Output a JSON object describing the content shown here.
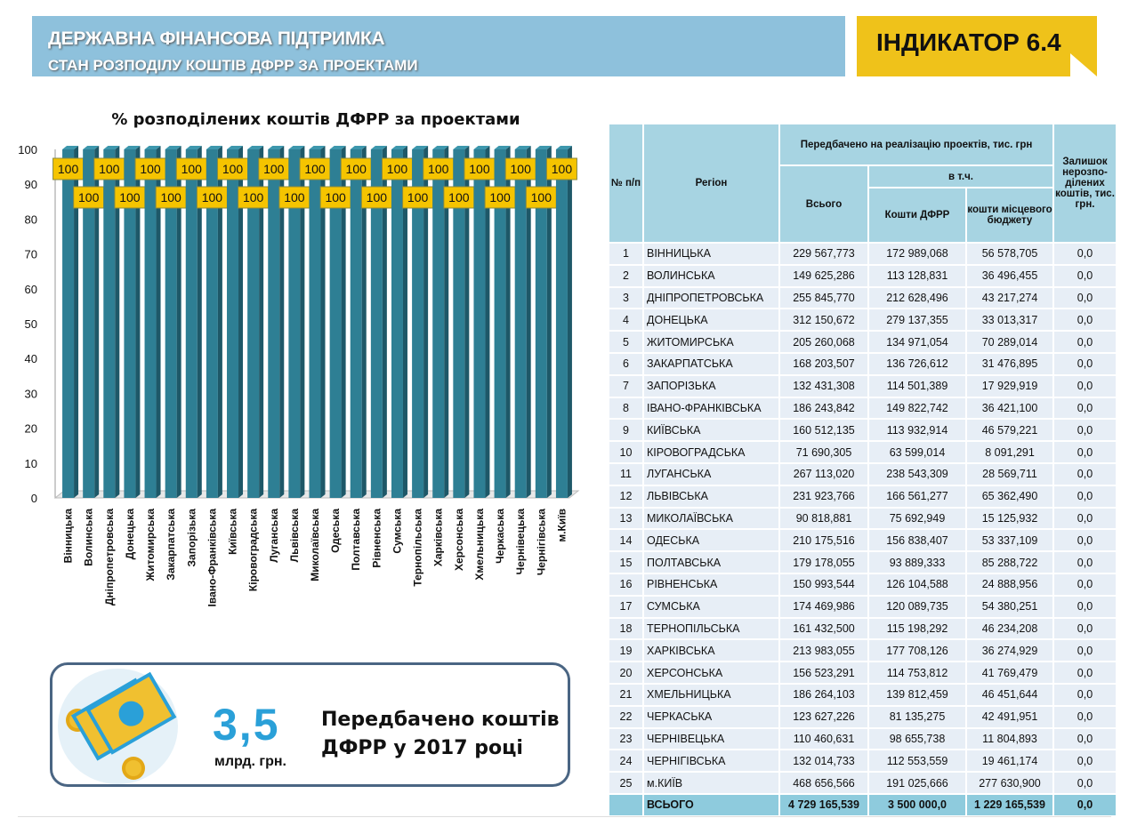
{
  "header": {
    "title": "ДЕРЖАВНА ФІНАНСОВА  ПІДТРИМКА",
    "subtitle": "СТАН РОЗПОДІЛУ КОШТІВ ДФРР ЗА ПРОЕКТАМИ",
    "indicator": "ІНДИКАТОР 6.4"
  },
  "colors": {
    "banner": "#8ec1dc",
    "indicator": "#efc21a",
    "bar": "#2e7f94",
    "label_bg": "#f5c400",
    "accent": "#2aa0d8"
  },
  "chart_data": {
    "type": "bar",
    "title": "% розподілених коштів ДФРР за проектами",
    "ylim": [
      0,
      100
    ],
    "yticks": [
      0,
      10,
      20,
      30,
      40,
      50,
      60,
      70,
      80,
      90,
      100
    ],
    "categories": [
      "Вінницька",
      "Волинська",
      "Дніпропетровська",
      "Донецька",
      "Житомирська",
      "Закарпатська",
      "Запорізька",
      "Івано-Франківська",
      "Київська",
      "Кіровоградська",
      "Луганська",
      "Львівська",
      "Миколаївська",
      "Одеська",
      "Полтавська",
      "Рівненська",
      "Сумська",
      "Тернопільська",
      "Харківська",
      "Херсонська",
      "Хмельницька",
      "Черкаська",
      "Чернівецька",
      "Чернігівська",
      "м.Київ"
    ],
    "values": [
      100,
      100,
      100,
      100,
      100,
      100,
      100,
      100,
      100,
      100,
      100,
      100,
      100,
      100,
      100,
      100,
      100,
      100,
      100,
      100,
      100,
      100,
      100,
      100,
      100
    ]
  },
  "card": {
    "amount": "3,5",
    "unit": "млрд. грн.",
    "line1": "Передбачено коштів",
    "line2": "ДФРР у 2017 році",
    "icon": "money-icon"
  },
  "table": {
    "headers": {
      "num": "№ п/п",
      "region": "Регіон",
      "planned": "Передбачено на реалізацію проектів, тис. грн",
      "incl": "в т.ч.",
      "total": "Всього",
      "dfrr": "Кошти ДФРР",
      "local": "кошти місцевого бюджету",
      "remain": "Залишок нерозпо-ділених коштів, тис. грн."
    },
    "rows": [
      [
        "1",
        "ВІННИЦЬКА",
        "229 567,773",
        "172 989,068",
        "56 578,705",
        "0,0"
      ],
      [
        "2",
        "ВОЛИНСЬКА",
        "149 625,286",
        "113 128,831",
        "36 496,455",
        "0,0"
      ],
      [
        "3",
        "ДНІПРОПЕТРОВСЬКА",
        "255 845,770",
        "212 628,496",
        "43 217,274",
        "0,0"
      ],
      [
        "4",
        "ДОНЕЦЬКА",
        "312 150,672",
        "279 137,355",
        "33 013,317",
        "0,0"
      ],
      [
        "5",
        "ЖИТОМИРСЬКА",
        "205 260,068",
        "134 971,054",
        "70 289,014",
        "0,0"
      ],
      [
        "6",
        "ЗАКАРПАТСЬКА",
        "168 203,507",
        "136 726,612",
        "31 476,895",
        "0,0"
      ],
      [
        "7",
        "ЗАПОРІЗЬКА",
        "132 431,308",
        "114 501,389",
        "17 929,919",
        "0,0"
      ],
      [
        "8",
        "ІВАНО-ФРАНКІВСЬКА",
        "186 243,842",
        "149 822,742",
        "36 421,100",
        "0,0"
      ],
      [
        "9",
        "КИЇВСЬКА",
        "160 512,135",
        "113 932,914",
        "46 579,221",
        "0,0"
      ],
      [
        "10",
        "КІРОВОГРАДСЬКА",
        "71 690,305",
        "63 599,014",
        "8 091,291",
        "0,0"
      ],
      [
        "11",
        "ЛУГАНСЬКА",
        "267 113,020",
        "238 543,309",
        "28 569,711",
        "0,0"
      ],
      [
        "12",
        "ЛЬВІВСЬКА",
        "231 923,766",
        "166 561,277",
        "65 362,490",
        "0,0"
      ],
      [
        "13",
        "МИКОЛАЇВСЬКА",
        "90 818,881",
        "75 692,949",
        "15 125,932",
        "0,0"
      ],
      [
        "14",
        "ОДЕСЬКА",
        "210 175,516",
        "156 838,407",
        "53 337,109",
        "0,0"
      ],
      [
        "15",
        "ПОЛТАВСЬКА",
        "179 178,055",
        "93 889,333",
        "85 288,722",
        "0,0"
      ],
      [
        "16",
        "РІВНЕНСЬКА",
        "150 993,544",
        "126 104,588",
        "24 888,956",
        "0,0"
      ],
      [
        "17",
        "СУМСЬКА",
        "174 469,986",
        "120 089,735",
        "54 380,251",
        "0,0"
      ],
      [
        "18",
        "ТЕРНОПІЛЬСЬКА",
        "161 432,500",
        "115 198,292",
        "46 234,208",
        "0,0"
      ],
      [
        "19",
        "ХАРКІВСЬКА",
        "213 983,055",
        "177 708,126",
        "36 274,929",
        "0,0"
      ],
      [
        "20",
        "ХЕРСОНСЬКА",
        "156 523,291",
        "114 753,812",
        "41 769,479",
        "0,0"
      ],
      [
        "21",
        "ХМЕЛЬНИЦЬКА",
        "186 264,103",
        "139 812,459",
        "46 451,644",
        "0,0"
      ],
      [
        "22",
        "ЧЕРКАСЬКА",
        "123 627,226",
        "81 135,275",
        "42 491,951",
        "0,0"
      ],
      [
        "23",
        "ЧЕРНІВЕЦЬКА",
        "110 460,631",
        "98 655,738",
        "11 804,893",
        "0,0"
      ],
      [
        "24",
        "ЧЕРНІГІВСЬКА",
        "132 014,733",
        "112 553,559",
        "19 461,174",
        "0,0"
      ],
      [
        "25",
        "м.КИЇВ",
        "468 656,566",
        "191 025,666",
        "277 630,900",
        "0,0"
      ]
    ],
    "total": [
      "",
      "ВСЬОГО",
      "4 729 165,539",
      "3 500 000,0",
      "1 229 165,539",
      "0,0"
    ]
  }
}
